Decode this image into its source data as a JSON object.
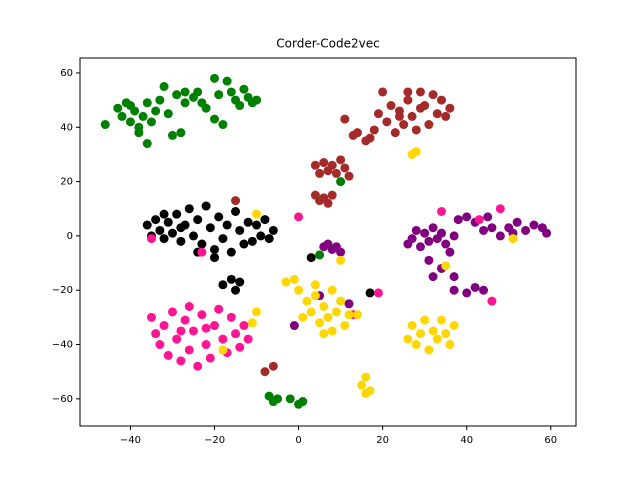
{
  "chart_data": {
    "type": "scatter",
    "title": "Corder-Code2vec",
    "xlim": [
      -52,
      66
    ],
    "ylim": [
      -70,
      65.5
    ],
    "xticks": [
      {
        "value": -40,
        "label": "−40"
      },
      {
        "value": -20,
        "label": "−20"
      },
      0,
      20,
      40,
      60
    ],
    "yticks": [
      {
        "value": -60,
        "label": "−60"
      },
      {
        "value": -40,
        "label": "−40"
      },
      {
        "value": -20,
        "label": "−20"
      },
      0,
      20,
      40,
      60
    ],
    "grid": false,
    "series": [
      {
        "color": "#008000",
        "x": [
          -46,
          -43,
          -42,
          -41,
          -40,
          -39,
          -38,
          -37,
          -36,
          -35,
          -34,
          -33,
          -32,
          -31,
          -30,
          -29,
          -28,
          -27,
          -25,
          -23,
          -22,
          -20,
          -19,
          -18,
          -16,
          -15,
          -14,
          -13,
          -12,
          -11,
          -10,
          -17,
          -20,
          -24,
          -27,
          -38,
          -36,
          -40,
          -7,
          -6,
          -5,
          -2,
          0,
          1,
          10,
          5
        ],
        "y": [
          41,
          47,
          44,
          49,
          42,
          46,
          40,
          44,
          49,
          42,
          46,
          50,
          55,
          45,
          37,
          52,
          38,
          49,
          51,
          49,
          47,
          43,
          52,
          41,
          53,
          50,
          48,
          54,
          51,
          49,
          50,
          57,
          58,
          53,
          53,
          38,
          34,
          48,
          -59,
          -61,
          -60,
          -60,
          -62,
          -61,
          20,
          -7
        ]
      },
      {
        "color": "#a52a2a",
        "x": [
          4,
          5,
          6,
          7,
          8,
          9,
          10,
          11,
          12,
          4,
          5,
          6,
          7,
          8,
          19,
          21,
          22,
          23,
          24,
          25,
          26,
          27,
          28,
          29,
          30,
          31,
          32,
          33,
          34,
          35,
          36,
          26,
          20,
          17,
          16,
          14,
          13,
          11,
          18,
          -6,
          -15,
          -8,
          29,
          24
        ],
        "y": [
          26,
          23,
          27,
          24,
          26,
          23,
          28,
          25,
          22,
          15,
          13,
          14,
          12,
          15,
          45,
          42,
          48,
          38,
          46,
          41,
          50,
          44,
          39,
          53,
          48,
          41,
          52,
          45,
          50,
          44,
          47,
          53,
          53,
          36,
          35,
          38,
          37,
          43,
          39,
          -48,
          13,
          -50,
          47,
          44
        ]
      },
      {
        "color": "#000000",
        "x": [
          -36,
          -35,
          -34,
          -33,
          -32,
          -31,
          -30,
          -29,
          -28,
          -27,
          -26,
          -25,
          -24,
          -23,
          -22,
          -21,
          -20,
          -19,
          -18,
          -17,
          -16,
          -15,
          -14,
          -13,
          -12,
          -11,
          -10,
          -9,
          -8,
          -7,
          -6,
          -24,
          -20,
          -28,
          -32,
          -18,
          -16,
          -15,
          -14,
          17,
          3
        ],
        "y": [
          4,
          0,
          6,
          2,
          -1,
          5,
          1,
          8,
          -2,
          4,
          10,
          0,
          6,
          -3,
          11,
          3,
          -5,
          7,
          -1,
          4,
          -6,
          9,
          2,
          -3,
          5,
          -2,
          4,
          0,
          6,
          -1,
          2,
          -6,
          -8,
          3,
          8,
          -18,
          -16,
          -20,
          -17,
          -21,
          -8
        ]
      },
      {
        "color": "#800080",
        "x": [
          26,
          27,
          28,
          29,
          30,
          31,
          32,
          33,
          34,
          35,
          36,
          37,
          38,
          40,
          42,
          44,
          45,
          46,
          48,
          50,
          52,
          54,
          56,
          58,
          59,
          51,
          31,
          32,
          34,
          37,
          37,
          40,
          42,
          44,
          6,
          7,
          8,
          9,
          10,
          5,
          -1,
          12
        ],
        "y": [
          -3,
          -1,
          2,
          -4,
          1,
          -2,
          3,
          -1,
          1,
          -3,
          -6,
          0,
          6,
          7,
          5,
          2,
          7,
          3,
          0,
          3,
          5,
          2,
          4,
          3,
          1,
          1,
          -9,
          -15,
          -12,
          -15,
          -20,
          -21,
          -19,
          -20,
          -4,
          -3,
          -5,
          -4,
          -6,
          -22,
          -33,
          -25
        ]
      },
      {
        "color": "#ff1493",
        "x": [
          -35,
          -34,
          -33,
          -32,
          -31,
          -30,
          -29,
          -28,
          -27,
          -26,
          -25,
          -24,
          -23,
          -22,
          -21,
          -20,
          -19,
          -18,
          -17,
          -16,
          -15,
          -14,
          -13,
          -12,
          -26,
          -22,
          -28,
          -35,
          -23,
          34,
          46,
          48,
          13,
          19,
          0,
          43
        ],
        "y": [
          -30,
          -36,
          -40,
          -33,
          -44,
          -28,
          -38,
          -46,
          -31,
          -42,
          -35,
          -48,
          -29,
          -40,
          -45,
          -33,
          -27,
          -38,
          -43,
          -30,
          -36,
          -41,
          -33,
          -38,
          -26,
          -34,
          -35,
          -1,
          -6,
          9,
          -24,
          10,
          -29,
          -21,
          7,
          6
        ]
      },
      {
        "color": "#ffd700",
        "x": [
          -3,
          -1,
          0,
          2,
          3,
          4,
          5,
          6,
          7,
          8,
          9,
          10,
          11,
          12,
          4,
          1,
          6,
          8,
          10,
          26,
          27,
          28,
          29,
          30,
          31,
          32,
          33,
          34,
          35,
          36,
          37,
          15,
          16,
          17,
          16,
          27,
          28,
          35,
          -18,
          -11,
          -10,
          14,
          51,
          -10
        ],
        "y": [
          -17,
          -16,
          -20,
          -24,
          -28,
          -22,
          -32,
          -26,
          -30,
          -35,
          -28,
          -24,
          -33,
          -29,
          -18,
          -30,
          -36,
          -20,
          -9,
          -38,
          -33,
          -40,
          -36,
          -31,
          -42,
          -35,
          -38,
          -31,
          -36,
          -40,
          -33,
          -55,
          -52,
          -57,
          -58,
          30,
          31,
          -11,
          -42,
          -32,
          -28,
          -29,
          -1,
          8
        ]
      }
    ]
  }
}
